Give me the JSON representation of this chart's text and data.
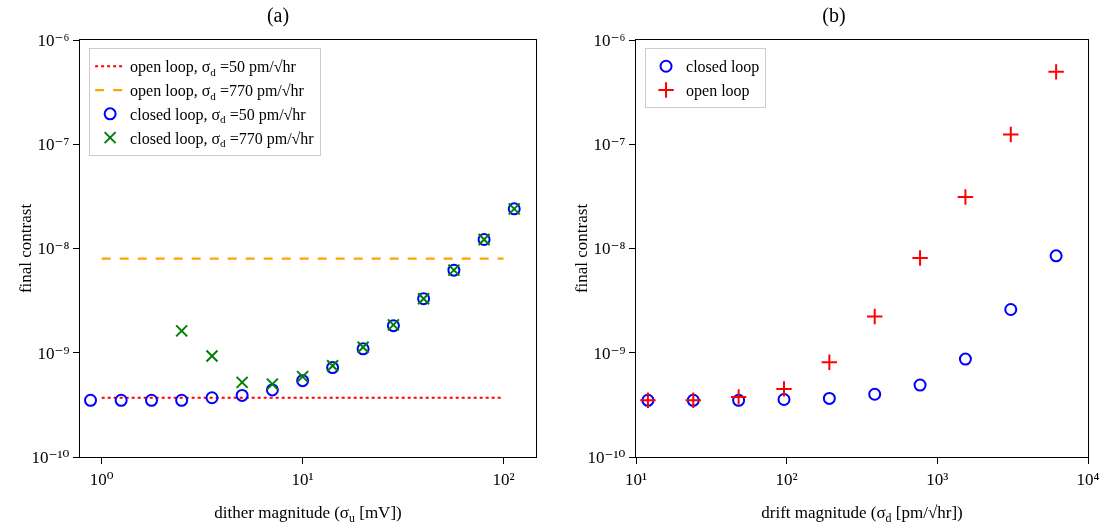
{
  "chart_data": [
    {
      "type": "scatter",
      "title": "(a)",
      "xlabel": "dither magnitude (σ$_{u}$ [mV])",
      "ylabel": "final contrast",
      "log": "xy",
      "grid": false,
      "legend": "top left",
      "xlim": [
        0.78,
        145
      ],
      "xticks": [
        {
          "value": 1,
          "label": "10⁰"
        },
        {
          "value": 10,
          "label": "10¹"
        },
        {
          "value": 100,
          "label": "10²"
        }
      ],
      "ylim": [
        1e-10,
        1e-06
      ],
      "yticks": [
        {
          "value": 1e-10,
          "label": "10⁻¹⁰"
        },
        {
          "value": 1e-09,
          "label": "10⁻⁹"
        },
        {
          "value": 1e-08,
          "label": "10⁻⁸"
        },
        {
          "value": 1e-07,
          "label": "10⁻⁷"
        },
        {
          "value": 1e-06,
          "label": "10⁻⁶"
        }
      ],
      "series": [
        {
          "name": "open loop, σ$_{d}$ =50 pm/√hr",
          "type": "line",
          "line_style": "dotted",
          "marker": "none",
          "color": "#ff0000",
          "x": [
            1,
            100
          ],
          "values": [
            3.7e-10,
            3.7e-10
          ]
        },
        {
          "name": "open loop, σ$_{d}$ =770 pm/√hr",
          "type": "line",
          "line_style": "dashed",
          "marker": "none",
          "color": "#ffa500",
          "x": [
            1,
            100
          ],
          "values": [
            8e-09,
            8e-09
          ]
        },
        {
          "name": "closed loop, σ$_{d}$ =50 pm/√hr",
          "marker": "circle",
          "color": "#0000ff",
          "x": [
            0.88,
            1.25,
            1.77,
            2.5,
            3.54,
            5,
            7.07,
            10,
            14.1,
            20,
            28.3,
            40,
            56.6,
            80,
            113
          ],
          "values": [
            3.5e-10,
            3.5e-10,
            3.5e-10,
            3.5e-10,
            3.7e-10,
            3.9e-10,
            4.4e-10,
            5.4e-10,
            7.2e-10,
            1.09e-09,
            1.82e-09,
            3.3e-09,
            6.2e-09,
            1.22e-08,
            2.4e-08
          ]
        },
        {
          "name": "closed loop, σ$_{d}$ =770 pm/√hr",
          "marker": "x",
          "color": "#008000",
          "x": [
            2.5,
            3.54,
            5,
            7.07,
            10,
            14.1,
            20,
            28.3,
            40,
            56.6,
            80,
            113
          ],
          "values": [
            1.62e-09,
            9.3e-10,
            5.2e-10,
            5e-10,
            5.9e-10,
            7.5e-10,
            1.13e-09,
            1.85e-09,
            3.3e-09,
            6.2e-09,
            1.22e-08,
            2.4e-08
          ]
        }
      ]
    },
    {
      "type": "scatter",
      "title": "(b)",
      "xlabel": "drift magnitude (σ$_{d}$ [pm/√hr])",
      "ylabel": "final contrast",
      "log": "xy",
      "grid": false,
      "legend": "top left",
      "xlim": [
        10,
        10000
      ],
      "xticks": [
        {
          "value": 10,
          "label": "10¹"
        },
        {
          "value": 100,
          "label": "10²"
        },
        {
          "value": 1000,
          "label": "10³"
        },
        {
          "value": 10000,
          "label": "10⁴"
        }
      ],
      "ylim": [
        1e-10,
        1e-06
      ],
      "yticks": [
        {
          "value": 1e-10,
          "label": "10⁻¹⁰"
        },
        {
          "value": 1e-09,
          "label": "10⁻⁹"
        },
        {
          "value": 1e-08,
          "label": "10⁻⁸"
        },
        {
          "value": 1e-07,
          "label": "10⁻⁷"
        },
        {
          "value": 1e-06,
          "label": "10⁻⁶"
        }
      ],
      "series": [
        {
          "name": "closed loop",
          "marker": "circle",
          "color": "#0000ff",
          "x": [
            12,
            24,
            48,
            96,
            192,
            384,
            768,
            1536,
            3072,
            6144
          ],
          "values": [
            3.5e-10,
            3.5e-10,
            3.5e-10,
            3.56e-10,
            3.65e-10,
            4e-10,
            4.9e-10,
            8.7e-10,
            2.6e-09,
            8.5e-09
          ]
        },
        {
          "name": "open loop",
          "marker": "cross",
          "color": "#ff0000",
          "x": [
            12,
            24,
            48,
            96,
            192,
            384,
            768,
            1536,
            3072,
            6144
          ],
          "values": [
            3.5e-10,
            3.5e-10,
            3.77e-10,
            4.5e-10,
            8.1e-10,
            2.23e-09,
            8.1e-09,
            3.12e-08,
            1.24e-07,
            4.95e-07
          ]
        }
      ]
    }
  ]
}
